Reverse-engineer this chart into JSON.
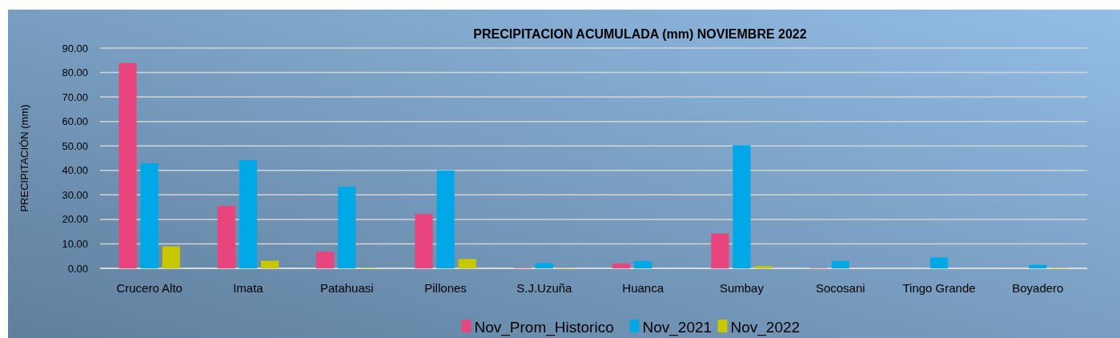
{
  "chart_data": {
    "type": "bar",
    "title": "PRECIPITACION ACUMULADA (mm) NOVIEMBRE 2022",
    "ylabel": "PRECIPITACIÓN (mm)",
    "categories": [
      "Crucero Alto",
      "Imata",
      "Patahuasi",
      "Pillones",
      "S.J.Uzuña",
      "Huanca",
      "Sumbay",
      "Socosani",
      "Tingo Grande",
      "Boyadero"
    ],
    "series": [
      {
        "name": "Nov_Prom_Historico",
        "color": "#e8457e",
        "values": [
          83.9,
          25.5,
          6.8,
          22.2,
          0.2,
          2.0,
          14.2,
          0.2,
          0,
          0
        ]
      },
      {
        "name": "Nov_2021",
        "color": "#00a8e8",
        "values": [
          42.9,
          44.2,
          33.4,
          40.0,
          2.2,
          3.0,
          50.3,
          3.0,
          4.4,
          1.4
        ]
      },
      {
        "name": "Nov_2022",
        "color": "#c8c800",
        "values": [
          9.0,
          3.1,
          0.2,
          3.8,
          0.2,
          0,
          0.9,
          0,
          0,
          0.2
        ]
      }
    ],
    "ylim": [
      0,
      90
    ],
    "yticks": [
      {
        "value": 0,
        "label": "0.00"
      },
      {
        "value": 10,
        "label": "10.00"
      },
      {
        "value": 20,
        "label": "20.00"
      },
      {
        "value": 30,
        "label": "30.00"
      },
      {
        "value": 40,
        "label": "40.00"
      },
      {
        "value": 50,
        "label": "50.00"
      },
      {
        "value": 60,
        "label": "60.00"
      },
      {
        "value": 70,
        "label": "70.00"
      },
      {
        "value": 80,
        "label": "80.00"
      },
      {
        "value": 90,
        "label": "90.00"
      }
    ],
    "grid": "y",
    "legend": "bottom"
  }
}
